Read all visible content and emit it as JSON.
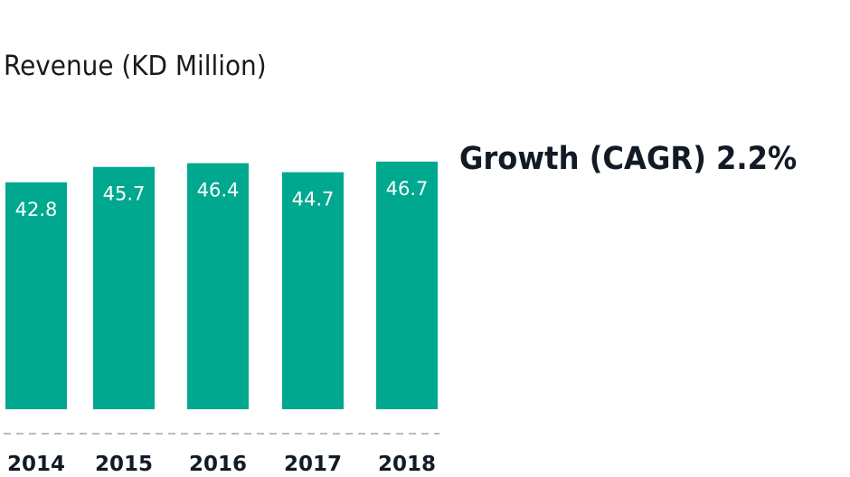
{
  "chart_data": {
    "type": "bar",
    "title": "Revenue (KD Million)",
    "categories": [
      "2014",
      "2015",
      "2016",
      "2017",
      "2018"
    ],
    "values": [
      42.8,
      45.7,
      46.4,
      44.7,
      46.7
    ],
    "xlabel": "",
    "ylabel": "",
    "grid": false,
    "bar_color": "#00a88f",
    "label_color": "#ffffff",
    "tick_color": "#111a25",
    "baseline_color": "#bbbbbb"
  },
  "annotation": {
    "label": "Growth (CAGR)",
    "value": "2.2%"
  }
}
